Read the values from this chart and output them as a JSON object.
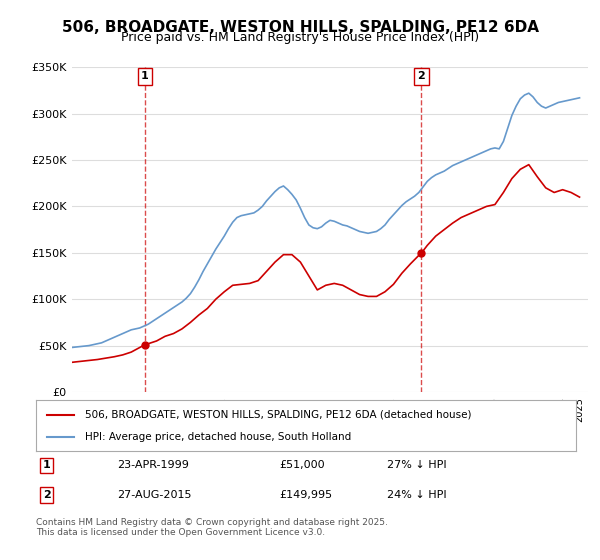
{
  "title": "506, BROADGATE, WESTON HILLS, SPALDING, PE12 6DA",
  "subtitle": "Price paid vs. HM Land Registry's House Price Index (HPI)",
  "ylabel_ticks": [
    "£0",
    "£50K",
    "£100K",
    "£150K",
    "£200K",
    "£250K",
    "£300K",
    "£350K"
  ],
  "ylim": [
    0,
    350000
  ],
  "xlim": [
    1995.0,
    2025.5
  ],
  "legend_line1": "506, BROADGATE, WESTON HILLS, SPALDING, PE12 6DA (detached house)",
  "legend_line2": "HPI: Average price, detached house, South Holland",
  "footnote": "Contains HM Land Registry data © Crown copyright and database right 2025.\nThis data is licensed under the Open Government Licence v3.0.",
  "marker1_date": "23-APR-1999",
  "marker1_price": "£51,000",
  "marker1_hpi": "27% ↓ HPI",
  "marker1_year": 1999.31,
  "marker1_value": 51000,
  "marker2_date": "27-AUG-2015",
  "marker2_price": "£149,995",
  "marker2_hpi": "24% ↓ HPI",
  "marker2_year": 2015.65,
  "marker2_value": 149995,
  "red_color": "#cc0000",
  "blue_color": "#6699cc",
  "background_color": "#ffffff",
  "grid_color": "#dddddd",
  "title_fontsize": 11,
  "subtitle_fontsize": 9,
  "hpi_data": {
    "years": [
      1995.0,
      1995.25,
      1995.5,
      1995.75,
      1996.0,
      1996.25,
      1996.5,
      1996.75,
      1997.0,
      1997.25,
      1997.5,
      1997.75,
      1998.0,
      1998.25,
      1998.5,
      1998.75,
      1999.0,
      1999.25,
      1999.5,
      1999.75,
      2000.0,
      2000.25,
      2000.5,
      2000.75,
      2001.0,
      2001.25,
      2001.5,
      2001.75,
      2002.0,
      2002.25,
      2002.5,
      2002.75,
      2003.0,
      2003.25,
      2003.5,
      2003.75,
      2004.0,
      2004.25,
      2004.5,
      2004.75,
      2005.0,
      2005.25,
      2005.5,
      2005.75,
      2006.0,
      2006.25,
      2006.5,
      2006.75,
      2007.0,
      2007.25,
      2007.5,
      2007.75,
      2008.0,
      2008.25,
      2008.5,
      2008.75,
      2009.0,
      2009.25,
      2009.5,
      2009.75,
      2010.0,
      2010.25,
      2010.5,
      2010.75,
      2011.0,
      2011.25,
      2011.5,
      2011.75,
      2012.0,
      2012.25,
      2012.5,
      2012.75,
      2013.0,
      2013.25,
      2013.5,
      2013.75,
      2014.0,
      2014.25,
      2014.5,
      2014.75,
      2015.0,
      2015.25,
      2015.5,
      2015.75,
      2016.0,
      2016.25,
      2016.5,
      2016.75,
      2017.0,
      2017.25,
      2017.5,
      2017.75,
      2018.0,
      2018.25,
      2018.5,
      2018.75,
      2019.0,
      2019.25,
      2019.5,
      2019.75,
      2020.0,
      2020.25,
      2020.5,
      2020.75,
      2021.0,
      2021.25,
      2021.5,
      2021.75,
      2022.0,
      2022.25,
      2022.5,
      2022.75,
      2023.0,
      2023.25,
      2023.5,
      2023.75,
      2024.0,
      2024.25,
      2024.5,
      2024.75,
      2025.0
    ],
    "values": [
      48000,
      48500,
      49000,
      49500,
      50000,
      51000,
      52000,
      53000,
      55000,
      57000,
      59000,
      61000,
      63000,
      65000,
      67000,
      68000,
      69000,
      71000,
      73000,
      76000,
      79000,
      82000,
      85000,
      88000,
      91000,
      94000,
      97000,
      101000,
      106000,
      113000,
      121000,
      130000,
      138000,
      146000,
      154000,
      161000,
      168000,
      176000,
      183000,
      188000,
      190000,
      191000,
      192000,
      193000,
      196000,
      200000,
      206000,
      211000,
      216000,
      220000,
      222000,
      218000,
      213000,
      207000,
      198000,
      188000,
      180000,
      177000,
      176000,
      178000,
      182000,
      185000,
      184000,
      182000,
      180000,
      179000,
      177000,
      175000,
      173000,
      172000,
      171000,
      172000,
      173000,
      176000,
      180000,
      186000,
      191000,
      196000,
      201000,
      205000,
      208000,
      211000,
      215000,
      221000,
      227000,
      231000,
      234000,
      236000,
      238000,
      241000,
      244000,
      246000,
      248000,
      250000,
      252000,
      254000,
      256000,
      258000,
      260000,
      262000,
      263000,
      262000,
      270000,
      284000,
      298000,
      308000,
      316000,
      320000,
      322000,
      318000,
      312000,
      308000,
      306000,
      308000,
      310000,
      312000,
      313000,
      314000,
      315000,
      316000,
      317000
    ]
  },
  "property_data": {
    "years": [
      1995.0,
      1995.5,
      1996.0,
      1996.5,
      1997.0,
      1997.5,
      1998.0,
      1998.5,
      1999.31,
      1999.5,
      2000.0,
      2000.5,
      2001.0,
      2001.5,
      2002.0,
      2002.5,
      2003.0,
      2003.5,
      2004.0,
      2004.5,
      2005.0,
      2005.5,
      2006.0,
      2006.5,
      2007.0,
      2007.5,
      2008.0,
      2008.5,
      2009.0,
      2009.5,
      2010.0,
      2010.5,
      2011.0,
      2011.5,
      2012.0,
      2012.5,
      2013.0,
      2013.5,
      2014.0,
      2014.5,
      2015.0,
      2015.65,
      2015.75,
      2016.0,
      2016.5,
      2017.0,
      2017.5,
      2018.0,
      2018.5,
      2019.0,
      2019.5,
      2020.0,
      2020.5,
      2021.0,
      2021.5,
      2022.0,
      2022.5,
      2023.0,
      2023.5,
      2024.0,
      2024.5,
      2025.0
    ],
    "values": [
      32000,
      33000,
      34000,
      35000,
      36500,
      38000,
      40000,
      43000,
      51000,
      52000,
      55000,
      60000,
      63000,
      68000,
      75000,
      83000,
      90000,
      100000,
      108000,
      115000,
      116000,
      117000,
      120000,
      130000,
      140000,
      148000,
      148000,
      140000,
      125000,
      110000,
      115000,
      117000,
      115000,
      110000,
      105000,
      103000,
      103000,
      108000,
      116000,
      128000,
      138000,
      149995,
      152000,
      158000,
      168000,
      175000,
      182000,
      188000,
      192000,
      196000,
      200000,
      202000,
      215000,
      230000,
      240000,
      245000,
      232000,
      220000,
      215000,
      218000,
      215000,
      210000
    ]
  }
}
